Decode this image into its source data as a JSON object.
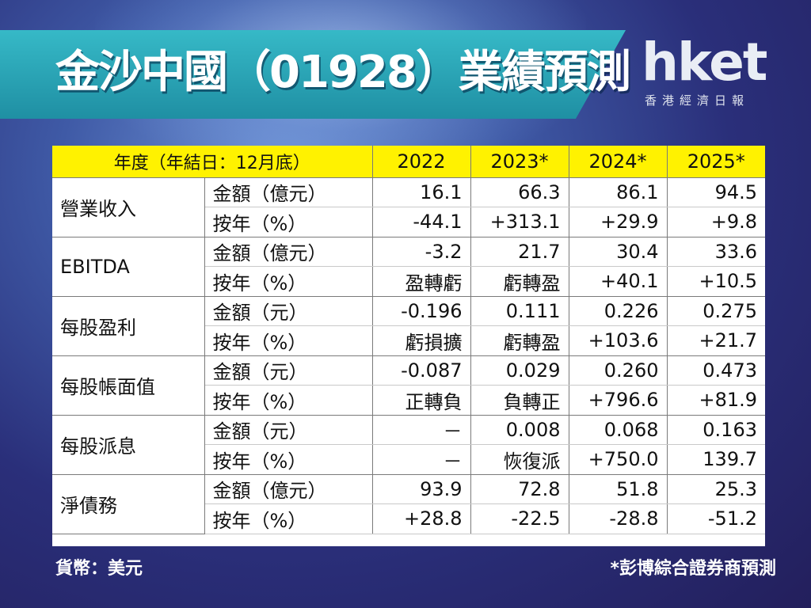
{
  "title": "金沙中國（01928）業績預測",
  "logo": {
    "brand": "hket",
    "tagline": "香港經濟日報"
  },
  "table": {
    "header": [
      "年度（年結日：12月底）",
      "2022",
      "2023*",
      "2024*",
      "2025*"
    ],
    "groups": [
      {
        "metric": "營業收入",
        "rows": [
          {
            "label": "金額（億元）",
            "values": [
              "16.1",
              "66.3",
              "86.1",
              "94.5"
            ]
          },
          {
            "label": "按年（%）",
            "values": [
              "-44.1",
              "+313.1",
              "+29.9",
              "+9.8"
            ]
          }
        ]
      },
      {
        "metric": "EBITDA",
        "rows": [
          {
            "label": "金額（億元）",
            "values": [
              "-3.2",
              "21.7",
              "30.4",
              "33.6"
            ]
          },
          {
            "label": "按年（%）",
            "values": [
              "盈轉虧",
              "虧轉盈",
              "+40.1",
              "+10.5"
            ]
          }
        ]
      },
      {
        "metric": "每股盈利",
        "rows": [
          {
            "label": "金額（元）",
            "values": [
              "-0.196",
              "0.111",
              "0.226",
              "0.275"
            ]
          },
          {
            "label": "按年（%）",
            "values": [
              "虧損擴",
              "虧轉盈",
              "+103.6",
              "+21.7"
            ]
          }
        ]
      },
      {
        "metric": "每股帳面值",
        "rows": [
          {
            "label": "金額（元）",
            "values": [
              "-0.087",
              "0.029",
              "0.260",
              "0.473"
            ]
          },
          {
            "label": "按年（%）",
            "values": [
              "正轉負",
              "負轉正",
              "+796.6",
              "+81.9"
            ]
          }
        ]
      },
      {
        "metric": "每股派息",
        "rows": [
          {
            "label": "金額（元）",
            "values": [
              "－",
              "0.008",
              "0.068",
              "0.163"
            ]
          },
          {
            "label": "按年（%）",
            "values": [
              "－",
              "恢復派",
              "+750.0",
              "139.7"
            ]
          }
        ]
      },
      {
        "metric": "淨債務",
        "rows": [
          {
            "label": "金額（億元）",
            "values": [
              "93.9",
              "72.8",
              "51.8",
              "25.3"
            ]
          },
          {
            "label": "按年（%）",
            "values": [
              "+28.8",
              "-22.5",
              "-28.8",
              "-51.2"
            ]
          }
        ]
      }
    ]
  },
  "footer": {
    "currency": "貨幣：美元",
    "note": "*彭博綜合證券商預測"
  },
  "colors": {
    "negative_text": "#e5161b",
    "header_fill": "#fff200",
    "title_band": "#26a4b5"
  }
}
